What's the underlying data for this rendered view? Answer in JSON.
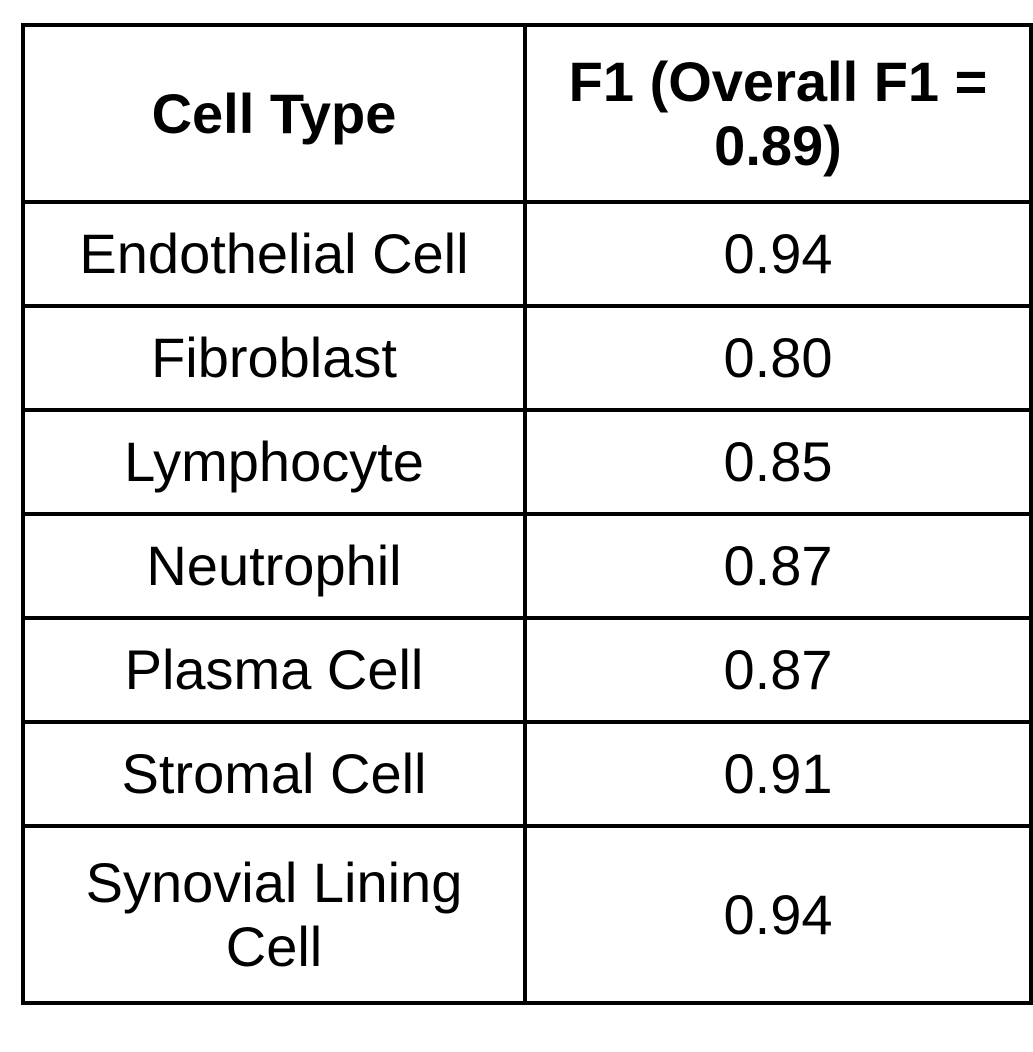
{
  "table": {
    "headers": [
      "Cell Type",
      "F1 (Overall F1 = 0.89)"
    ],
    "rows": [
      {
        "cell_type": "Endothelial Cell",
        "f1": "0.94"
      },
      {
        "cell_type": "Fibroblast",
        "f1": "0.80"
      },
      {
        "cell_type": "Lymphocyte",
        "f1": "0.85"
      },
      {
        "cell_type": "Neutrophil",
        "f1": "0.87"
      },
      {
        "cell_type": "Plasma Cell",
        "f1": "0.87"
      },
      {
        "cell_type": "Stromal Cell",
        "f1": "0.91"
      },
      {
        "cell_type": "Synovial Lining Cell",
        "f1": "0.94"
      }
    ]
  }
}
